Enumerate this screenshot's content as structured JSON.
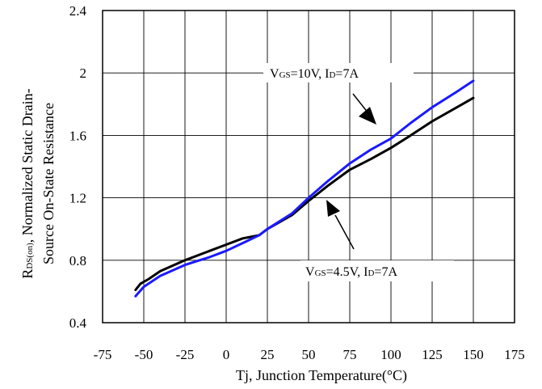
{
  "chart_data": {
    "type": "line",
    "xlabel": "Tj, Junction Temperature(°C)",
    "ylabel_line1_main": "R",
    "ylabel_line1_sub": "DS(on)",
    "ylabel_line1_rest": ", Normalized Static Drain-",
    "ylabel_line2": "Source On-State Resistance",
    "xlim": [
      -75,
      175
    ],
    "ylim": [
      0.4,
      2.4
    ],
    "x_ticks": [
      -75,
      -50,
      -25,
      0,
      25,
      50,
      75,
      100,
      125,
      150,
      175
    ],
    "x_tick_labels": [
      "-75",
      "-50",
      "-25",
      "0",
      "25",
      "50",
      "75",
      "100",
      "125",
      "150",
      "175"
    ],
    "y_ticks": [
      0.4,
      0.8,
      1.2,
      1.6,
      2.0,
      2.4
    ],
    "y_tick_labels": [
      "0.4",
      "0.8",
      "1.2",
      "1.6",
      "2",
      "2.4"
    ],
    "grid": true,
    "series": [
      {
        "label_main_1": "V",
        "label_sub_1": "GS",
        "label_text_1": "=10V, I",
        "label_sub_2": "D",
        "label_text_2": "=7A",
        "color": "#1a1aff",
        "x": [
          -55,
          -50,
          -40,
          -25,
          -10,
          0,
          10,
          20,
          25,
          40,
          50,
          62,
          75,
          88,
          100,
          112,
          125,
          140,
          150
        ],
        "y": [
          0.57,
          0.63,
          0.7,
          0.77,
          0.82,
          0.86,
          0.91,
          0.96,
          1.0,
          1.1,
          1.2,
          1.31,
          1.42,
          1.51,
          1.58,
          1.68,
          1.78,
          1.88,
          1.95
        ]
      },
      {
        "label_main_1": "V",
        "label_sub_1": "GS",
        "label_text_1": "=4.5V, I",
        "label_sub_2": "D",
        "label_text_2": "=7A",
        "color": "#000000",
        "x": [
          -55,
          -52,
          -47,
          -40,
          -25,
          -10,
          0,
          10,
          20,
          25,
          40,
          50,
          62,
          75,
          88,
          100,
          112,
          125,
          140,
          150
        ],
        "y": [
          0.61,
          0.65,
          0.68,
          0.73,
          0.8,
          0.86,
          0.9,
          0.94,
          0.96,
          1.0,
          1.09,
          1.18,
          1.28,
          1.38,
          1.45,
          1.52,
          1.6,
          1.69,
          1.78,
          1.84
        ]
      }
    ]
  }
}
